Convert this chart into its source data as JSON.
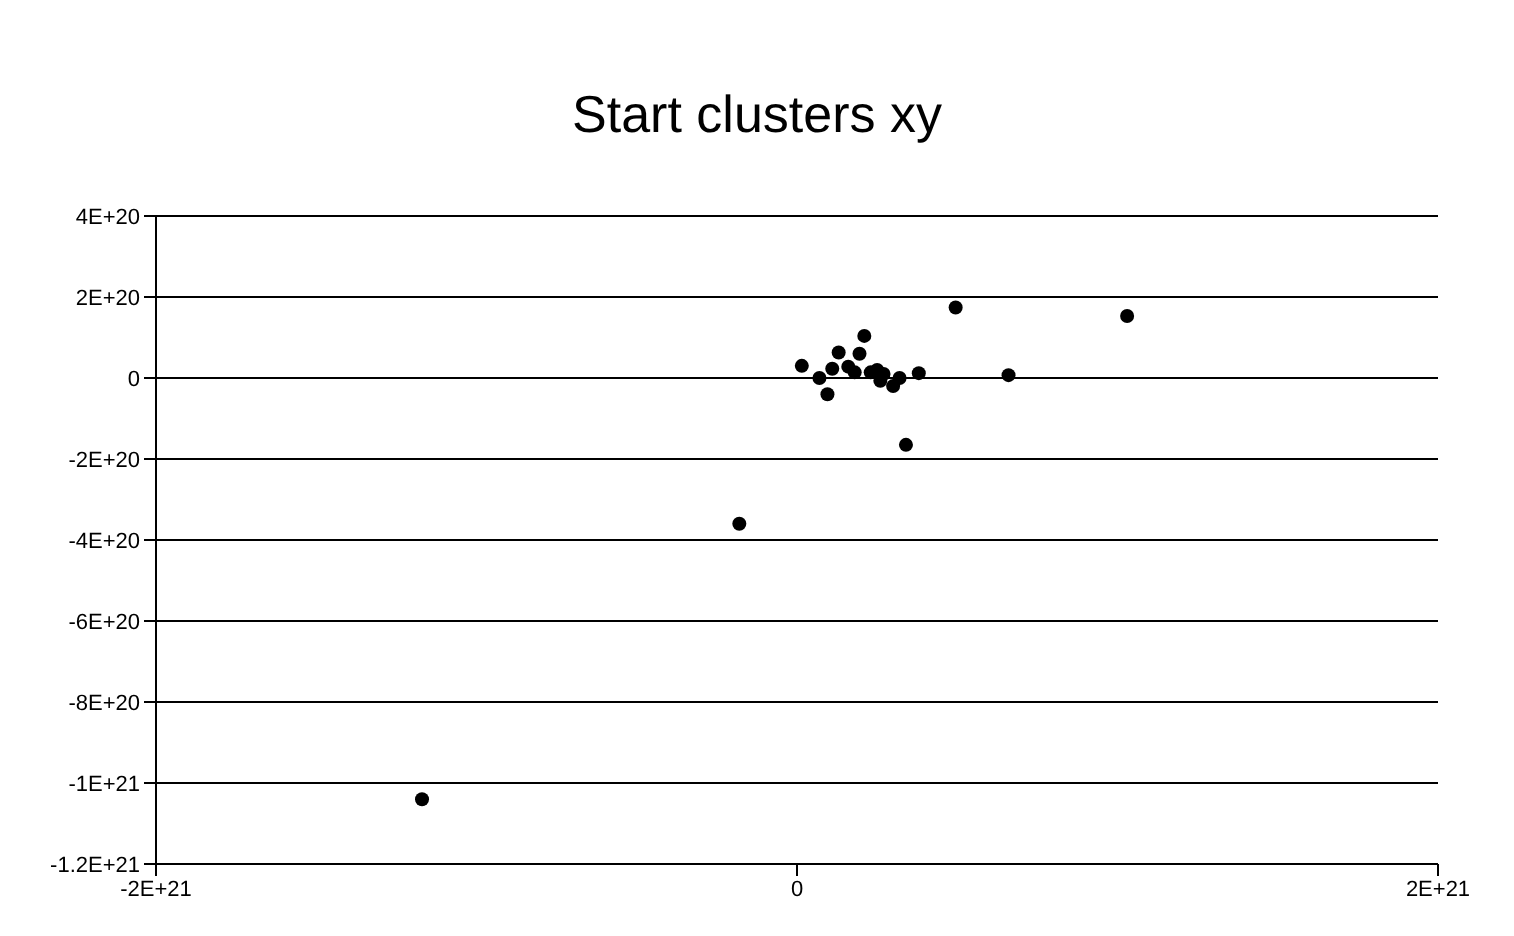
{
  "chart_data": {
    "type": "scatter",
    "title": "Start clusters xy",
    "x": [
      1.5e+19,
      7e+19,
      9.5e+19,
      1.1e+20,
      1.3e+20,
      1.6e+20,
      1.8e+20,
      1.95e+20,
      2.1e+20,
      2.3e+20,
      2.5e+20,
      2.6e+20,
      2.7e+20,
      3e+20,
      3.2e+20,
      3.4e+20,
      3.8e+20,
      4.95e+20,
      6.6e+20,
      1.03e+21,
      -1.8e+20,
      -1.17e+21
    ],
    "series": [
      {
        "color": "#000000",
        "values": [
          3e+19,
          0,
          -4e+19,
          2.3e+19,
          6.3e+19,
          2.8e+19,
          1.4e+19,
          6e+19,
          1.04e+20,
          1.4e+19,
          2e+19,
          -7e+18,
          1e+19,
          -2e+19,
          0,
          -1.65e+20,
          1.2e+19,
          1.74e+20,
          7e+18,
          1.53e+20,
          -3.6e+20,
          -1.04e+21
        ]
      }
    ],
    "xlim": [
      -2e+21,
      2e+21
    ],
    "xticks": [
      {
        "value": -2e+21,
        "label": "-2E+21"
      },
      0,
      {
        "value": 2e+21,
        "label": "2E+21"
      }
    ],
    "ylim": [
      -1.2e+21,
      4e+20
    ],
    "yticks": [
      {
        "value": -1.2e+21,
        "label": "-1.2E+21"
      },
      {
        "value": -1e+21,
        "label": "-1E+21"
      },
      {
        "value": -8e+20,
        "label": "-8E+20"
      },
      {
        "value": -6e+20,
        "label": "-6E+20"
      },
      {
        "value": -4e+20,
        "label": "-4E+20"
      },
      {
        "value": -2e+20,
        "label": "-2E+20"
      },
      0,
      {
        "value": 2e+20,
        "label": "2E+20"
      },
      {
        "value": 4e+20,
        "label": "4E+20"
      }
    ],
    "grid": "y",
    "marker": "circle",
    "legend": false
  }
}
